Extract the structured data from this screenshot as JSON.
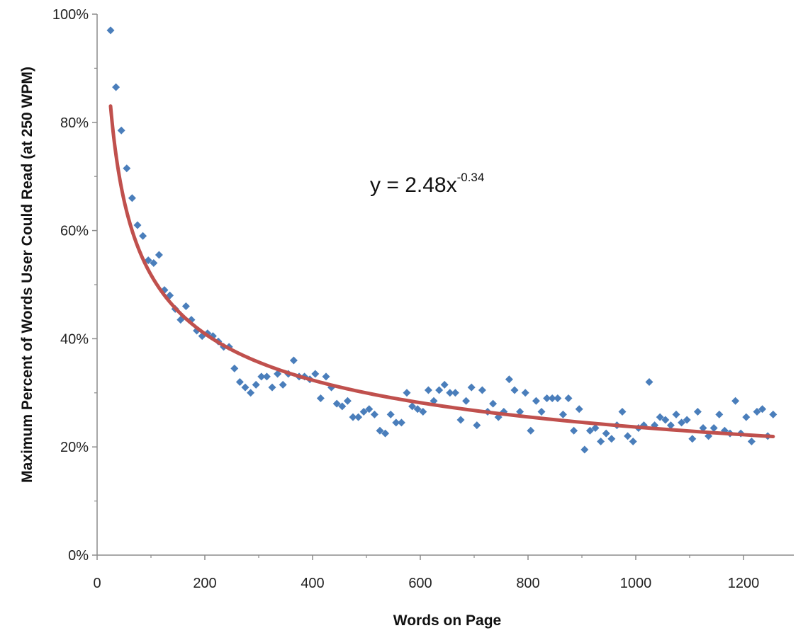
{
  "chart_data": {
    "type": "scatter",
    "xlabel": "Words on Page",
    "ylabel": "Maximum Percent of Words User Could Read (at 250 WPM)",
    "xlim": [
      0,
      1300
    ],
    "ylim": [
      0,
      1
    ],
    "x_ticks": [
      0,
      200,
      400,
      600,
      800,
      1000,
      1200
    ],
    "y_ticks": [
      0,
      0.2,
      0.4,
      0.6,
      0.8,
      1.0
    ],
    "x_tick_labels": [
      "0",
      "200",
      "400",
      "600",
      "800",
      "1000",
      "1200"
    ],
    "y_tick_labels": [
      "0%",
      "20%",
      "40%",
      "60%",
      "80%",
      "100%"
    ],
    "grid": false,
    "marker_color": "#4a7ebb",
    "trend_color": "#c0504d",
    "trendline": {
      "type": "power",
      "a": 2.48,
      "b": -0.34,
      "x_range": [
        25,
        1255
      ],
      "equation_base": "y = 2.48x",
      "equation_exponent": "-0.34"
    },
    "points": [
      [
        25,
        0.97
      ],
      [
        35,
        0.865
      ],
      [
        45,
        0.785
      ],
      [
        55,
        0.715
      ],
      [
        65,
        0.66
      ],
      [
        75,
        0.61
      ],
      [
        85,
        0.59
      ],
      [
        95,
        0.545
      ],
      [
        105,
        0.54
      ],
      [
        115,
        0.555
      ],
      [
        125,
        0.49
      ],
      [
        135,
        0.48
      ],
      [
        145,
        0.455
      ],
      [
        155,
        0.435
      ],
      [
        165,
        0.46
      ],
      [
        175,
        0.435
      ],
      [
        185,
        0.415
      ],
      [
        195,
        0.405
      ],
      [
        205,
        0.41
      ],
      [
        215,
        0.405
      ],
      [
        225,
        0.395
      ],
      [
        235,
        0.385
      ],
      [
        245,
        0.385
      ],
      [
        255,
        0.345
      ],
      [
        265,
        0.32
      ],
      [
        275,
        0.31
      ],
      [
        285,
        0.3
      ],
      [
        295,
        0.315
      ],
      [
        305,
        0.33
      ],
      [
        315,
        0.33
      ],
      [
        325,
        0.31
      ],
      [
        335,
        0.335
      ],
      [
        345,
        0.315
      ],
      [
        355,
        0.335
      ],
      [
        365,
        0.36
      ],
      [
        375,
        0.33
      ],
      [
        385,
        0.33
      ],
      [
        395,
        0.325
      ],
      [
        405,
        0.335
      ],
      [
        415,
        0.29
      ],
      [
        425,
        0.33
      ],
      [
        435,
        0.31
      ],
      [
        445,
        0.28
      ],
      [
        455,
        0.275
      ],
      [
        465,
        0.285
      ],
      [
        475,
        0.255
      ],
      [
        485,
        0.255
      ],
      [
        495,
        0.265
      ],
      [
        505,
        0.27
      ],
      [
        515,
        0.26
      ],
      [
        525,
        0.23
      ],
      [
        535,
        0.225
      ],
      [
        545,
        0.26
      ],
      [
        555,
        0.245
      ],
      [
        565,
        0.245
      ],
      [
        575,
        0.3
      ],
      [
        585,
        0.275
      ],
      [
        595,
        0.27
      ],
      [
        605,
        0.265
      ],
      [
        615,
        0.305
      ],
      [
        625,
        0.285
      ],
      [
        635,
        0.305
      ],
      [
        645,
        0.315
      ],
      [
        655,
        0.3
      ],
      [
        665,
        0.3
      ],
      [
        675,
        0.25
      ],
      [
        685,
        0.285
      ],
      [
        695,
        0.31
      ],
      [
        705,
        0.24
      ],
      [
        715,
        0.305
      ],
      [
        725,
        0.265
      ],
      [
        735,
        0.28
      ],
      [
        745,
        0.255
      ],
      [
        755,
        0.265
      ],
      [
        765,
        0.325
      ],
      [
        775,
        0.305
      ],
      [
        785,
        0.265
      ],
      [
        795,
        0.3
      ],
      [
        805,
        0.23
      ],
      [
        815,
        0.285
      ],
      [
        825,
        0.265
      ],
      [
        835,
        0.29
      ],
      [
        845,
        0.29
      ],
      [
        855,
        0.29
      ],
      [
        865,
        0.26
      ],
      [
        875,
        0.29
      ],
      [
        885,
        0.23
      ],
      [
        895,
        0.27
      ],
      [
        905,
        0.195
      ],
      [
        915,
        0.23
      ],
      [
        925,
        0.235
      ],
      [
        935,
        0.21
      ],
      [
        945,
        0.225
      ],
      [
        955,
        0.215
      ],
      [
        965,
        0.24
      ],
      [
        975,
        0.265
      ],
      [
        985,
        0.22
      ],
      [
        995,
        0.21
      ],
      [
        1005,
        0.235
      ],
      [
        1015,
        0.24
      ],
      [
        1025,
        0.32
      ],
      [
        1035,
        0.24
      ],
      [
        1045,
        0.255
      ],
      [
        1055,
        0.25
      ],
      [
        1065,
        0.24
      ],
      [
        1075,
        0.26
      ],
      [
        1085,
        0.245
      ],
      [
        1095,
        0.25
      ],
      [
        1105,
        0.215
      ],
      [
        1115,
        0.265
      ],
      [
        1125,
        0.235
      ],
      [
        1135,
        0.22
      ],
      [
        1145,
        0.235
      ],
      [
        1155,
        0.26
      ],
      [
        1165,
        0.23
      ],
      [
        1175,
        0.225
      ],
      [
        1185,
        0.285
      ],
      [
        1195,
        0.225
      ],
      [
        1205,
        0.255
      ],
      [
        1215,
        0.21
      ],
      [
        1225,
        0.265
      ],
      [
        1235,
        0.27
      ],
      [
        1245,
        0.22
      ],
      [
        1255,
        0.26
      ]
    ]
  }
}
